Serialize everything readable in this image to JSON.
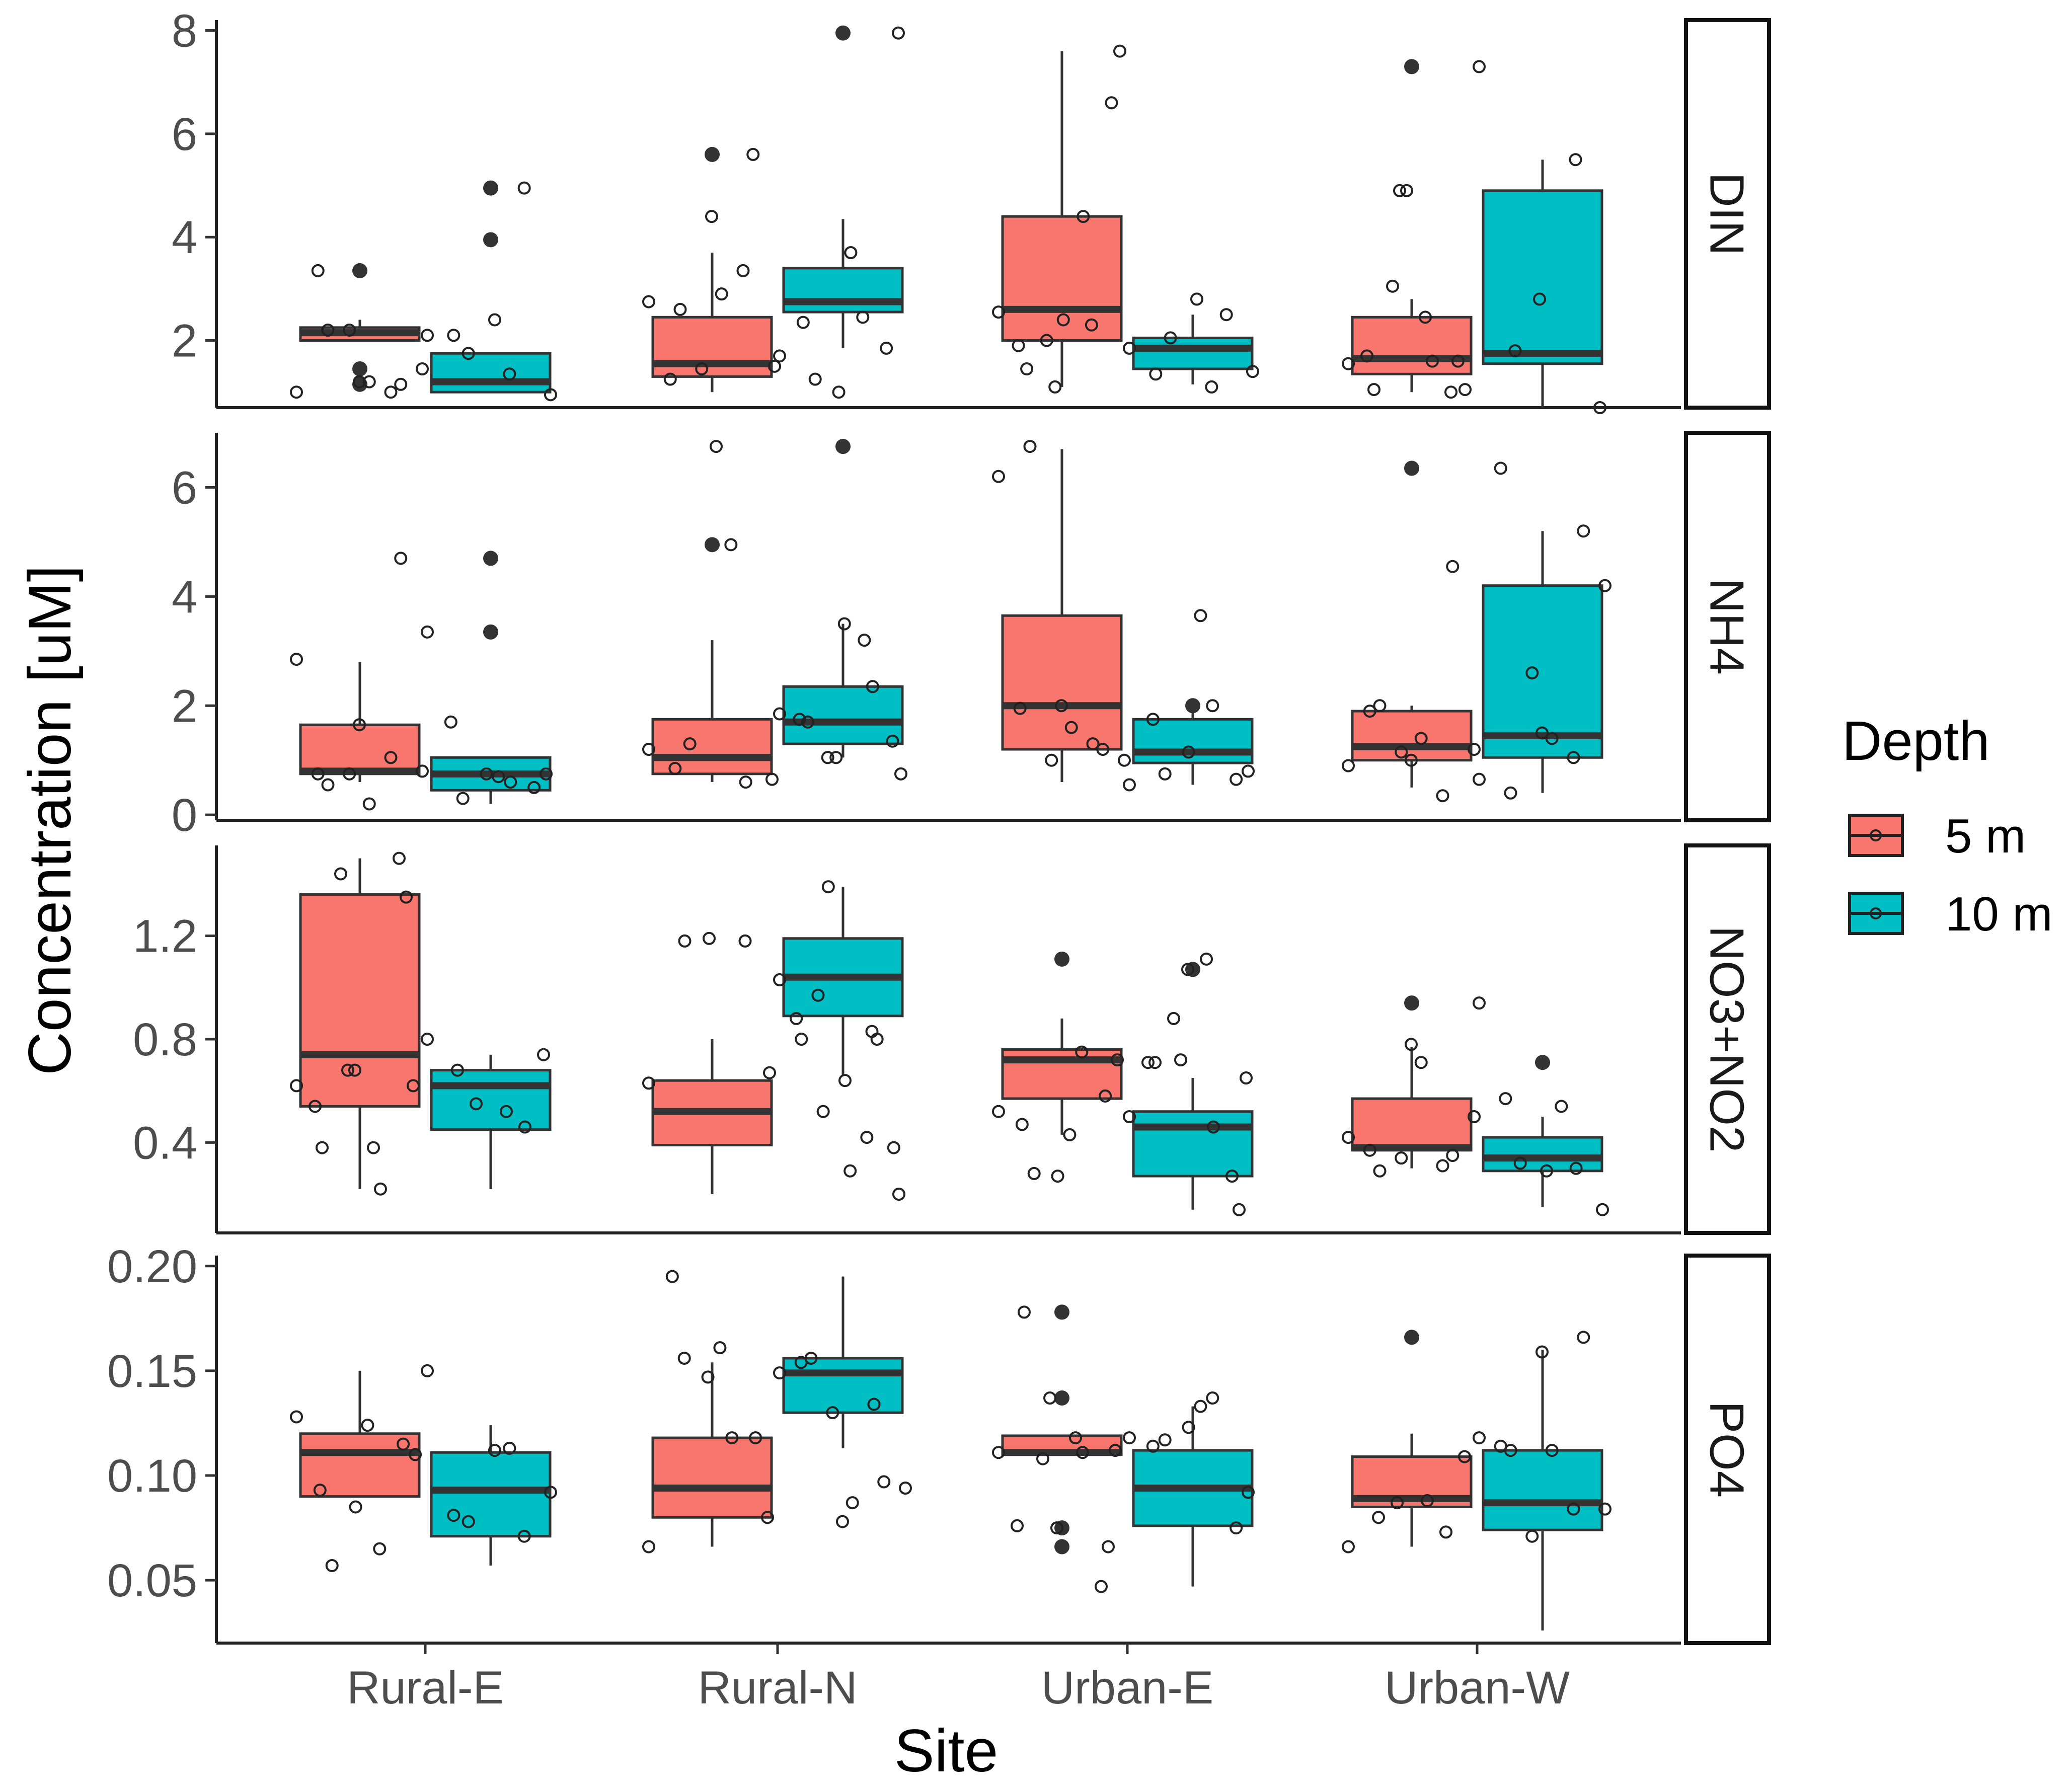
{
  "chart_data": {
    "type": "boxplot",
    "xlabel": "Site",
    "ylabel": "Concentration [uM]",
    "categories": [
      "Rural-E",
      "Rural-N",
      "Urban-E",
      "Urban-W"
    ],
    "legend": {
      "title": "Depth",
      "position": "right",
      "entries": [
        {
          "label": "5 m",
          "color": "#F8766D"
        },
        {
          "label": "10 m",
          "color": "#00BFC4"
        }
      ]
    },
    "facets": [
      {
        "name": "DIN",
        "ylim": [
          0.7,
          8.2
        ],
        "ticks": [
          {
            "v": 2,
            "label": "2"
          },
          {
            "v": 4,
            "label": "4"
          },
          {
            "v": 6,
            "label": "6"
          },
          {
            "v": 8,
            "label": "8"
          }
        ],
        "series": [
          {
            "depth": "5 m",
            "boxes": [
              {
                "site": "Rural-E",
                "lo": 2.0,
                "q1": 2.0,
                "median": 2.15,
                "q3": 2.25,
                "hi": 2.4,
                "outliers": [
                  3.35,
                  1.45,
                  1.15
                ],
                "points": [
                  1.0,
                  3.35,
                  2.2,
                  2.2,
                  1.2,
                  1.2,
                  1.0,
                  1.15,
                  1.45
                ]
              },
              {
                "site": "Rural-N",
                "lo": 1.0,
                "q1": 1.3,
                "median": 1.55,
                "q3": 2.45,
                "hi": 3.7,
                "outliers": [
                  5.6
                ],
                "points": [
                  2.75,
                  1.25,
                  2.6,
                  1.45,
                  4.4,
                  2.9,
                  3.35,
                  5.6,
                  1.5
                ]
              },
              {
                "site": "Urban-E",
                "lo": 1.1,
                "q1": 2.0,
                "median": 2.6,
                "q3": 4.4,
                "hi": 7.6,
                "outliers": [],
                "points": [
                  2.55,
                  1.9,
                  1.45,
                  2.0,
                  1.1,
                  2.4,
                  4.4,
                  2.3,
                  6.6,
                  7.6
                ]
              },
              {
                "site": "Urban-W",
                "lo": 1.0,
                "q1": 1.35,
                "median": 1.65,
                "q3": 2.45,
                "hi": 2.8,
                "outliers": [
                  7.3
                ],
                "points": [
                  1.55,
                  1.7,
                  1.05,
                  3.05,
                  4.9,
                  4.9,
                  2.45,
                  1.6,
                  1.0,
                  1.6,
                  1.05
                ]
              }
            ]
          },
          {
            "depth": "10 m",
            "boxes": [
              {
                "site": "Rural-E",
                "lo": 1.0,
                "q1": 1.0,
                "median": 1.2,
                "q3": 1.75,
                "hi": 1.75,
                "outliers": [
                  4.95,
                  3.95
                ],
                "points": [
                  2.1,
                  2.1,
                  1.75,
                  2.4,
                  1.35,
                  4.95,
                  0.95
                ]
              },
              {
                "site": "Rural-N",
                "lo": 1.85,
                "q1": 2.55,
                "median": 2.75,
                "q3": 3.4,
                "hi": 4.35,
                "outliers": [
                  7.95
                ],
                "points": [
                  1.7,
                  2.35,
                  1.25,
                  1.0,
                  3.7,
                  2.45,
                  1.85,
                  7.95
                ]
              },
              {
                "site": "Urban-E",
                "lo": 1.15,
                "q1": 1.45,
                "median": 1.85,
                "q3": 2.05,
                "hi": 2.5,
                "outliers": [],
                "points": [
                  1.85,
                  1.35,
                  2.05,
                  2.8,
                  1.1,
                  2.5,
                  1.4
                ]
              },
              {
                "site": "Urban-W",
                "lo": 0.7,
                "q1": 1.55,
                "median": 1.75,
                "q3": 4.9,
                "hi": 5.5,
                "outliers": [],
                "points": [
                  7.3,
                  1.8,
                  2.8,
                  5.5,
                  0.7
                ]
              }
            ]
          }
        ]
      },
      {
        "name": "NH4",
        "ylim": [
          -0.1,
          7.0
        ],
        "ticks": [
          {
            "v": 0,
            "label": "0"
          },
          {
            "v": 2,
            "label": "2"
          },
          {
            "v": 4,
            "label": "4"
          },
          {
            "v": 6,
            "label": "6"
          }
        ],
        "series": [
          {
            "depth": "5 m",
            "boxes": [
              {
                "site": "Rural-E",
                "lo": 0.6,
                "q1": 0.75,
                "median": 0.8,
                "q3": 1.65,
                "hi": 2.8,
                "outliers": [],
                "points": [
                  2.85,
                  0.75,
                  0.55,
                  0.75,
                  1.65,
                  0.2,
                  1.05,
                  4.7,
                  0.8
                ]
              },
              {
                "site": "Rural-N",
                "lo": 0.6,
                "q1": 0.75,
                "median": 1.05,
                "q3": 1.75,
                "hi": 3.2,
                "outliers": [
                  4.95
                ],
                "points": [
                  1.2,
                  0.85,
                  1.3,
                  6.75,
                  4.95,
                  0.6,
                  0.65
                ]
              },
              {
                "site": "Urban-E",
                "lo": 0.6,
                "q1": 1.2,
                "median": 2.0,
                "q3": 3.65,
                "hi": 6.7,
                "outliers": [],
                "points": [
                  6.2,
                  1.95,
                  6.75,
                  1.0,
                  2.0,
                  1.6,
                  1.3,
                  1.2,
                  1.0
                ]
              },
              {
                "site": "Urban-W",
                "lo": 0.5,
                "q1": 1.0,
                "median": 1.25,
                "q3": 1.9,
                "hi": 2.0,
                "outliers": [
                  6.35
                ],
                "points": [
                  0.9,
                  1.9,
                  2.0,
                  1.15,
                  1.0,
                  1.4,
                  0.35,
                  4.55,
                  1.2
                ]
              }
            ]
          },
          {
            "depth": "10 m",
            "boxes": [
              {
                "site": "Rural-E",
                "lo": 0.2,
                "q1": 0.45,
                "median": 0.75,
                "q3": 1.05,
                "hi": 1.05,
                "outliers": [
                  4.7,
                  3.35
                ],
                "points": [
                  3.35,
                  1.7,
                  0.3,
                  0.75,
                  0.7,
                  0.6,
                  0.5,
                  0.75
                ]
              },
              {
                "site": "Rural-N",
                "lo": 1.05,
                "q1": 1.3,
                "median": 1.7,
                "q3": 2.35,
                "hi": 3.5,
                "outliers": [
                  6.75
                ],
                "points": [
                  1.85,
                  1.75,
                  1.7,
                  1.05,
                  1.05,
                  3.5,
                  3.2,
                  2.35,
                  1.35,
                  0.75
                ]
              },
              {
                "site": "Urban-E",
                "lo": 0.55,
                "q1": 0.95,
                "median": 1.15,
                "q3": 1.75,
                "hi": 1.95,
                "outliers": [
                  2.0
                ],
                "points": [
                  0.55,
                  1.75,
                  0.75,
                  1.15,
                  3.65,
                  2.0,
                  0.65,
                  0.8
                ]
              },
              {
                "site": "Urban-W",
                "lo": 0.4,
                "q1": 1.05,
                "median": 1.45,
                "q3": 4.2,
                "hi": 5.2,
                "outliers": [],
                "points": [
                  0.65,
                  6.35,
                  0.4,
                  2.6,
                  1.5,
                  1.4,
                  1.05,
                  5.2,
                  4.2
                ]
              }
            ]
          }
        ]
      },
      {
        "name": "NO3+NO2",
        "ylim": [
          0.05,
          1.55
        ],
        "ticks": [
          {
            "v": 0.4,
            "label": "0.4"
          },
          {
            "v": 0.8,
            "label": "0.8"
          },
          {
            "v": 1.2,
            "label": "1.2"
          }
        ],
        "series": [
          {
            "depth": "5 m",
            "boxes": [
              {
                "site": "Rural-E",
                "lo": 0.22,
                "q1": 0.54,
                "median": 0.74,
                "q3": 1.36,
                "hi": 1.5,
                "outliers": [],
                "points": [
                  0.62,
                  0.54,
                  0.38,
                  1.44,
                  0.68,
                  0.68,
                  0.38,
                  0.22,
                  1.5,
                  1.35,
                  0.62
                ]
              },
              {
                "site": "Rural-N",
                "lo": 0.2,
                "q1": 0.39,
                "median": 0.52,
                "q3": 0.64,
                "hi": 0.8,
                "outliers": [],
                "points": [
                  0.63,
                  1.18,
                  1.19,
                  1.18,
                  0.67
                ]
              },
              {
                "site": "Urban-E",
                "lo": 0.43,
                "q1": 0.57,
                "median": 0.72,
                "q3": 0.76,
                "hi": 0.88,
                "outliers": [
                  1.11
                ],
                "points": [
                  0.52,
                  0.47,
                  0.28,
                  0.27,
                  0.43,
                  0.75,
                  0.58,
                  0.72
                ]
              },
              {
                "site": "Urban-W",
                "lo": 0.3,
                "q1": 0.37,
                "median": 0.38,
                "q3": 0.57,
                "hi": 0.77,
                "outliers": [
                  0.94
                ],
                "points": [
                  0.42,
                  0.37,
                  0.29,
                  0.34,
                  0.78,
                  0.71,
                  0.31,
                  0.35,
                  0.5
                ]
              }
            ]
          },
          {
            "depth": "10 m",
            "boxes": [
              {
                "site": "Rural-E",
                "lo": 0.22,
                "q1": 0.45,
                "median": 0.62,
                "q3": 0.68,
                "hi": 0.74,
                "outliers": [],
                "points": [
                  0.8,
                  0.68,
                  0.55,
                  0.52,
                  0.46,
                  0.74
                ]
              },
              {
                "site": "Rural-N",
                "lo": 0.66,
                "q1": 0.89,
                "median": 1.04,
                "q3": 1.19,
                "hi": 1.39,
                "outliers": [],
                "points": [
                  1.03,
                  0.88,
                  0.8,
                  0.97,
                  0.52,
                  1.39,
                  0.64,
                  0.29,
                  0.42,
                  0.83,
                  0.8,
                  0.38,
                  0.2
                ]
              },
              {
                "site": "Urban-E",
                "lo": 0.14,
                "q1": 0.27,
                "median": 0.46,
                "q3": 0.52,
                "hi": 0.65,
                "outliers": [
                  1.07
                ],
                "points": [
                  0.5,
                  0.71,
                  0.71,
                  0.88,
                  0.72,
                  1.07,
                  1.11,
                  0.46,
                  0.27,
                  0.14,
                  0.65
                ]
              },
              {
                "site": "Urban-W",
                "lo": 0.15,
                "q1": 0.29,
                "median": 0.34,
                "q3": 0.42,
                "hi": 0.5,
                "outliers": [
                  0.71
                ],
                "points": [
                  0.94,
                  0.57,
                  0.32,
                  0.29,
                  0.54,
                  0.3,
                  0.14
                ]
              }
            ]
          }
        ]
      },
      {
        "name": "PO4",
        "ylim": [
          0.02,
          0.205
        ],
        "ticks": [
          {
            "v": 0.05,
            "label": "0.05"
          },
          {
            "v": 0.1,
            "label": "0.10"
          },
          {
            "v": 0.15,
            "label": "0.15"
          },
          {
            "v": 0.2,
            "label": "0.20"
          }
        ],
        "series": [
          {
            "depth": "5 m",
            "boxes": [
              {
                "site": "Rural-E",
                "lo": 0.09,
                "q1": 0.09,
                "median": 0.111,
                "q3": 0.12,
                "hi": 0.15,
                "outliers": [],
                "points": [
                  0.128,
                  0.093,
                  0.057,
                  0.085,
                  0.124,
                  0.065,
                  0.115,
                  0.11
                ]
              },
              {
                "site": "Rural-N",
                "lo": 0.066,
                "q1": 0.08,
                "median": 0.094,
                "q3": 0.118,
                "hi": 0.154,
                "outliers": [],
                "points": [
                  0.066,
                  0.195,
                  0.156,
                  0.147,
                  0.161,
                  0.118,
                  0.118,
                  0.08
                ]
              },
              {
                "site": "Urban-E",
                "lo": 0.11,
                "q1": 0.11,
                "median": 0.111,
                "q3": 0.119,
                "hi": 0.119,
                "outliers": [
                  0.178,
                  0.137,
                  0.075,
                  0.066
                ],
                "points": [
                  0.111,
                  0.076,
                  0.178,
                  0.108,
                  0.137,
                  0.075,
                  0.118,
                  0.111,
                  0.047,
                  0.066,
                  0.112
                ]
              },
              {
                "site": "Urban-W",
                "lo": 0.066,
                "q1": 0.085,
                "median": 0.089,
                "q3": 0.109,
                "hi": 0.12,
                "outliers": [
                  0.166
                ],
                "points": [
                  0.066,
                  0.08,
                  0.087,
                  0.088,
                  0.073,
                  0.109
                ]
              }
            ]
          },
          {
            "depth": "10 m",
            "boxes": [
              {
                "site": "Rural-E",
                "lo": 0.057,
                "q1": 0.071,
                "median": 0.093,
                "q3": 0.111,
                "hi": 0.124,
                "outliers": [],
                "points": [
                  0.15,
                  0.081,
                  0.078,
                  0.112,
                  0.113,
                  0.071,
                  0.092
                ]
              },
              {
                "site": "Rural-N",
                "lo": 0.113,
                "q1": 0.13,
                "median": 0.149,
                "q3": 0.156,
                "hi": 0.195,
                "outliers": [],
                "points": [
                  0.149,
                  0.154,
                  0.156,
                  0.13,
                  0.078,
                  0.087,
                  0.134,
                  0.097,
                  0.094
                ]
              },
              {
                "site": "Urban-E",
                "lo": 0.047,
                "q1": 0.076,
                "median": 0.094,
                "q3": 0.112,
                "hi": 0.133,
                "outliers": [],
                "points": [
                  0.118,
                  0.114,
                  0.117,
                  0.123,
                  0.133,
                  0.137,
                  0.075,
                  0.092
                ]
              },
              {
                "site": "Urban-W",
                "lo": 0.026,
                "q1": 0.074,
                "median": 0.087,
                "q3": 0.112,
                "hi": 0.16,
                "outliers": [],
                "points": [
                  0.118,
                  0.114,
                  0.112,
                  0.071,
                  0.159,
                  0.112,
                  0.084,
                  0.166,
                  0.084
                ]
              }
            ]
          }
        ]
      }
    ]
  }
}
